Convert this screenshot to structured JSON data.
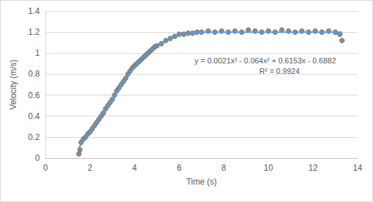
{
  "chart_data": {
    "type": "scatter",
    "x_label": "Time (s)",
    "y_label": "Velocity (m/s)",
    "annotations": [
      "y = 0.0021x³ - 0.064x² + 0.6153x - 0.6882",
      "R² = 0.9924"
    ],
    "xlim": [
      0,
      14
    ],
    "xticks": [
      0,
      2,
      4,
      6,
      8,
      10,
      12,
      14
    ],
    "ylim": [
      0,
      1.4
    ],
    "yticks": [
      0,
      0.2,
      0.4,
      0.6,
      0.8,
      1,
      1.2,
      1.4
    ],
    "grid": true,
    "series": [
      {
        "type": "scatter",
        "color": "#7f7f7f",
        "marker": "circle",
        "x": [
          1.5,
          1.55,
          1.6,
          1.7,
          1.8,
          1.9,
          2.0,
          2.1,
          2.2,
          2.3,
          2.4,
          2.5,
          2.6,
          2.7,
          2.8,
          2.9,
          3.0,
          3.1,
          3.2,
          3.3,
          3.4,
          3.5,
          3.6,
          3.7,
          3.8,
          3.9,
          4.0,
          4.1,
          4.2,
          4.3,
          4.4,
          4.5,
          4.6,
          4.7,
          4.8,
          4.9,
          5.0,
          5.2,
          5.4,
          5.6,
          5.8,
          6.0,
          6.2,
          6.4,
          6.6,
          6.8,
          7.0,
          7.3,
          7.6,
          7.9,
          8.2,
          8.5,
          8.8,
          9.1,
          9.4,
          9.7,
          10.0,
          10.3,
          10.6,
          10.9,
          11.2,
          11.5,
          11.8,
          12.1,
          12.4,
          12.7,
          13.0,
          13.2,
          13.3
        ],
        "values": [
          0.04,
          0.08,
          0.15,
          0.18,
          0.2,
          0.23,
          0.25,
          0.28,
          0.31,
          0.34,
          0.37,
          0.4,
          0.43,
          0.47,
          0.5,
          0.53,
          0.56,
          0.6,
          0.64,
          0.67,
          0.7,
          0.73,
          0.76,
          0.8,
          0.83,
          0.86,
          0.88,
          0.9,
          0.92,
          0.94,
          0.96,
          0.98,
          1.0,
          1.02,
          1.04,
          1.06,
          1.07,
          1.09,
          1.12,
          1.14,
          1.16,
          1.18,
          1.18,
          1.19,
          1.19,
          1.2,
          1.2,
          1.21,
          1.2,
          1.21,
          1.2,
          1.21,
          1.2,
          1.22,
          1.21,
          1.2,
          1.21,
          1.2,
          1.22,
          1.21,
          1.2,
          1.21,
          1.2,
          1.21,
          1.2,
          1.21,
          1.2,
          1.18,
          1.12
        ]
      },
      {
        "type": "line",
        "color": "#5b9bd5",
        "line_style": "solid",
        "x": [
          1.5,
          2,
          2.5,
          3,
          3.5,
          4,
          4.5,
          5,
          5.5,
          6,
          7,
          8,
          9,
          10,
          11,
          12,
          13,
          13.3
        ],
        "values": [
          0.1,
          0.25,
          0.4,
          0.56,
          0.72,
          0.87,
          0.98,
          1.07,
          1.13,
          1.17,
          1.2,
          1.2,
          1.2,
          1.2,
          1.2,
          1.2,
          1.2,
          1.2
        ]
      }
    ]
  }
}
